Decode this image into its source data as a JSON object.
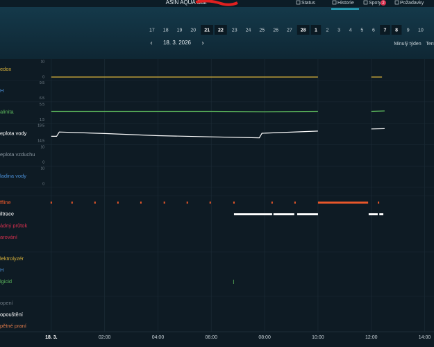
{
  "header": {
    "title": "ASIN AQUA Salt",
    "nav": [
      "Status",
      "Historie",
      "Spoty",
      "Požadavky"
    ],
    "badge": "2"
  },
  "dates": {
    "days": [
      17,
      18,
      19,
      20,
      21,
      22,
      23,
      24,
      25,
      26,
      27,
      28,
      1,
      2,
      3,
      4,
      5,
      6,
      7,
      8,
      9,
      10
    ],
    "bold": [
      false,
      false,
      false,
      false,
      true,
      true,
      false,
      false,
      false,
      false,
      false,
      true,
      true,
      false,
      false,
      false,
      false,
      false,
      true,
      true,
      false,
      false
    ]
  },
  "date_nav": {
    "current": "18. 3. 2026",
    "ranges": [
      "Minulý týden",
      "Tent"
    ]
  },
  "timeline": {
    "xlim": [
      -0.23,
      14.35
    ],
    "xticks": [
      {
        "value": 0,
        "label": "18. 3."
      },
      {
        "value": 2,
        "label": "02:00"
      },
      {
        "value": 4,
        "label": "04:00"
      },
      {
        "value": 6,
        "label": "06:00"
      },
      {
        "value": 8,
        "label": "08:00"
      },
      {
        "value": 10,
        "label": "10:00"
      },
      {
        "value": 12,
        "label": "12:00"
      },
      {
        "value": 14,
        "label": "14:00"
      }
    ],
    "lanes": [
      {
        "label": "edox",
        "color": "#d9b23a",
        "ylim": [
          0,
          10
        ],
        "yticks": [
          0,
          10
        ],
        "x": [
          0,
          10,
          11,
          12,
          12.4
        ],
        "values": [
          0,
          0,
          null,
          0,
          0
        ]
      },
      {
        "label": "H",
        "color": "#4a8fd6",
        "ylim": [
          6.5,
          9.5
        ],
        "yticks": [
          6.5,
          9.5
        ],
        "x": [],
        "values": []
      },
      {
        "label": "alinita",
        "color": "#5cb85c",
        "ylim": [
          1.5,
          5.5
        ],
        "yticks": [
          1.5,
          5.5
        ],
        "x": [
          0,
          2,
          4,
          6,
          8,
          10,
          11,
          12,
          12.5
        ],
        "values": [
          3.7,
          3.7,
          3.7,
          3.7,
          3.6,
          3.7,
          null,
          3.7,
          3.8
        ]
      },
      {
        "label": "eplota vody",
        "color": "#ffffff",
        "ylim": [
          14.5,
          19.5
        ],
        "yticks": [
          14.5,
          19.5
        ],
        "x": [
          0,
          0.2,
          0.3,
          2,
          4,
          6,
          7.8,
          7.9,
          10,
          11,
          12,
          12.5
        ],
        "values": [
          16.1,
          16.1,
          17.5,
          17.0,
          16.3,
          15.9,
          15.6,
          17.1,
          17.8,
          null,
          18.5,
          18.6
        ]
      },
      {
        "label": "eplota vzduchu",
        "color": "#8a96a0",
        "ylim": [
          0,
          10
        ],
        "yticks": [
          0,
          10
        ],
        "x": [],
        "values": []
      },
      {
        "label": "ladina vody",
        "color": "#4a8fd6",
        "ylim": [
          0,
          10
        ],
        "yticks": [
          0,
          10
        ],
        "x": [],
        "values": []
      }
    ],
    "events": [
      {
        "label": "ffline",
        "color": "#e8572a",
        "starts": [
          0,
          0.78,
          1.64,
          2.5,
          3.36,
          4.24,
          5.1,
          5.96,
          6.85,
          8.28,
          9.14,
          10.0,
          12.27
        ],
        "ends": [
          0,
          0.78,
          1.64,
          2.5,
          3.36,
          4.24,
          5.1,
          5.96,
          6.85,
          8.28,
          9.14,
          11.88,
          12.27
        ]
      },
      {
        "label": "iltrace",
        "color": "#ffffff",
        "starts": [
          6.85,
          8.33,
          9.22,
          11.9,
          12.3
        ],
        "ends": [
          8.28,
          9.11,
          10.0,
          12.24,
          12.45
        ]
      },
      {
        "label": "ádný průtok",
        "color": "#d9304f",
        "starts": [],
        "ends": []
      },
      {
        "label": "arování",
        "color": "#d9304f",
        "starts": [],
        "ends": []
      },
      {
        "label": "lektrolyzér",
        "color": "#d9b23a",
        "starts": [],
        "ends": []
      },
      {
        "label": "H",
        "color": "#4a8fd6",
        "starts": [],
        "ends": []
      },
      {
        "label": "lgicid",
        "color": "#5cb85c",
        "starts": [
          6.85
        ],
        "ends": [
          6.85
        ]
      },
      {
        "label": "opení",
        "color": "#6c7780",
        "starts": [],
        "ends": []
      },
      {
        "label": "opouštění",
        "color": "#ffffff",
        "starts": [],
        "ends": []
      },
      {
        "label": "pětné praní",
        "color": "#e07a4a",
        "starts": [],
        "ends": []
      }
    ]
  }
}
